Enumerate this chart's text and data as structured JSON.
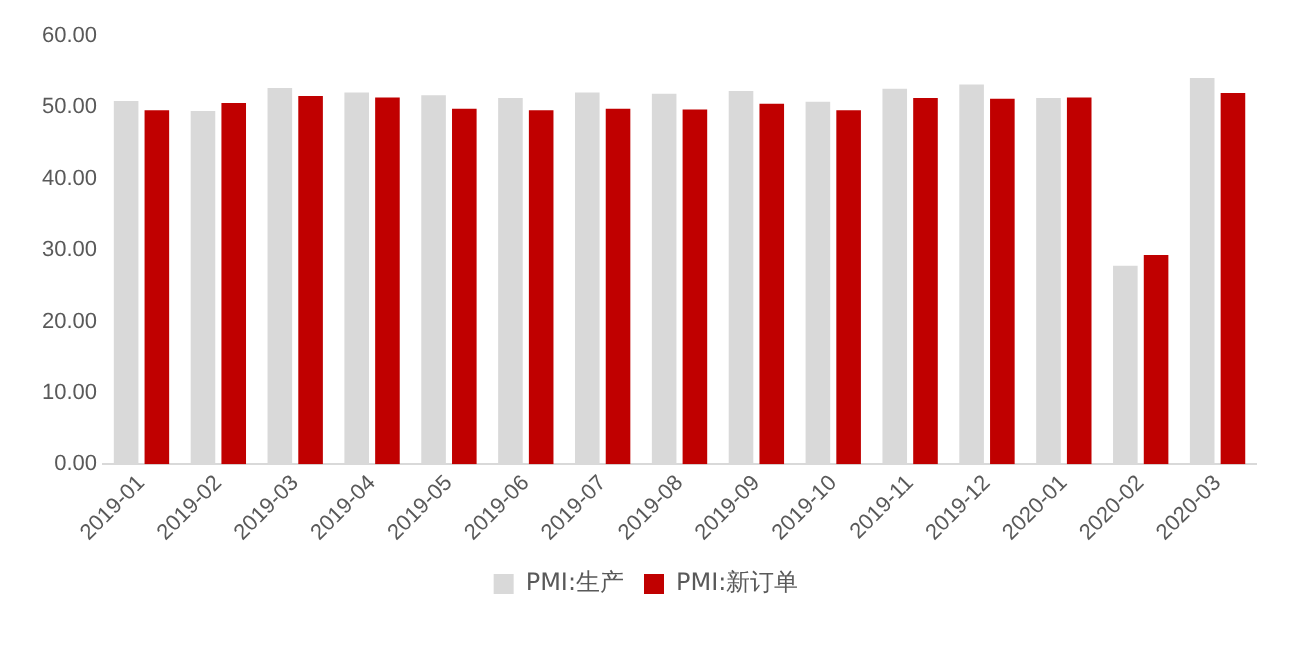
{
  "chart_data": {
    "type": "bar",
    "categories": [
      "2019-01",
      "2019-02",
      "2019-03",
      "2019-04",
      "2019-05",
      "2019-06",
      "2019-07",
      "2019-08",
      "2019-09",
      "2019-10",
      "2019-11",
      "2019-12",
      "2020-01",
      "2020-02",
      "2020-03"
    ],
    "series": [
      {
        "name": "PMI:生产",
        "color": "#d9d9d9",
        "values": [
          50.9,
          49.5,
          52.7,
          52.1,
          51.7,
          51.3,
          52.1,
          51.9,
          52.3,
          50.8,
          52.6,
          53.2,
          51.3,
          27.8,
          54.1
        ]
      },
      {
        "name": "PMI:新订单",
        "color": "#c00000",
        "values": [
          49.6,
          50.6,
          51.6,
          51.4,
          49.8,
          49.6,
          49.8,
          49.7,
          50.5,
          49.6,
          51.3,
          51.2,
          51.4,
          29.3,
          52.0
        ]
      }
    ],
    "ylim": [
      0,
      60
    ],
    "yticks": [
      {
        "value": 0,
        "label": "0.00"
      },
      {
        "value": 10,
        "label": "10.00"
      },
      {
        "value": 20,
        "label": "20.00"
      },
      {
        "value": 30,
        "label": "30.00"
      },
      {
        "value": 40,
        "label": "40.00"
      },
      {
        "value": 50,
        "label": "50.00"
      },
      {
        "value": 60,
        "label": "60.00"
      }
    ],
    "grid": false,
    "legend": "bottom"
  }
}
